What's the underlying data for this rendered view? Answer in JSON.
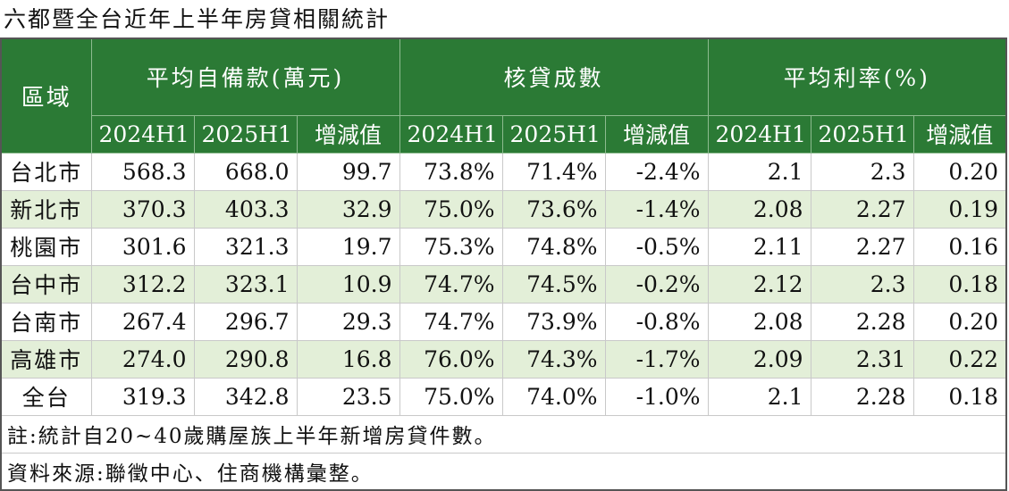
{
  "title": "六都暨全台近年上半年房貸相關統計",
  "colors": {
    "header_bg": "#2b7a35",
    "header_text": "#ffffff",
    "stripe": "#e3efd8"
  },
  "headers": {
    "region": "區域",
    "groups": [
      "平均自備款(萬元)",
      "核貸成數",
      "平均利率(%)"
    ],
    "sub": [
      "2024H1",
      "2025H1",
      "增減值",
      "2024H1",
      "2025H1",
      "增減值",
      "2024H1",
      "2025H1",
      "增減值"
    ]
  },
  "rows": [
    {
      "region": "台北市",
      "cells": [
        "568.3",
        "668.0",
        "99.7",
        "73.8%",
        "71.4%",
        "-2.4%",
        "2.1",
        "2.3",
        "0.20"
      ]
    },
    {
      "region": "新北市",
      "cells": [
        "370.3",
        "403.3",
        "32.9",
        "75.0%",
        "73.6%",
        "-1.4%",
        "2.08",
        "2.27",
        "0.19"
      ]
    },
    {
      "region": "桃園市",
      "cells": [
        "301.6",
        "321.3",
        "19.7",
        "75.3%",
        "74.8%",
        "-0.5%",
        "2.11",
        "2.27",
        "0.16"
      ]
    },
    {
      "region": "台中市",
      "cells": [
        "312.2",
        "323.1",
        "10.9",
        "74.7%",
        "74.5%",
        "-0.2%",
        "2.12",
        "2.3",
        "0.18"
      ]
    },
    {
      "region": "台南市",
      "cells": [
        "267.4",
        "296.7",
        "29.3",
        "74.7%",
        "73.9%",
        "-0.8%",
        "2.08",
        "2.28",
        "0.20"
      ]
    },
    {
      "region": "高雄市",
      "cells": [
        "274.0",
        "290.8",
        "16.8",
        "76.0%",
        "74.3%",
        "-1.7%",
        "2.09",
        "2.31",
        "0.22"
      ]
    },
    {
      "region": "全台",
      "cells": [
        "319.3",
        "342.8",
        "23.5",
        "75.0%",
        "74.0%",
        "-1.0%",
        "2.1",
        "2.28",
        "0.18"
      ]
    }
  ],
  "notes": {
    "note": "註:統計自20~40歲購屋族上半年新增房貸件數。",
    "source": "資料來源:聯徵中心、住商機構彙整。"
  },
  "chart_data": {
    "type": "table",
    "title": "六都暨全台近年上半年房貸相關統計",
    "columns": [
      "區域",
      "平均自備款(萬元) 2024H1",
      "平均自備款(萬元) 2025H1",
      "平均自備款(萬元) 增減值",
      "核貸成數 2024H1",
      "核貸成數 2025H1",
      "核貸成數 增減值",
      "平均利率(%) 2024H1",
      "平均利率(%) 2025H1",
      "平均利率(%) 增減值"
    ],
    "categories": [
      "台北市",
      "新北市",
      "桃園市",
      "台中市",
      "台南市",
      "高雄市",
      "全台"
    ],
    "series": [
      {
        "name": "平均自備款(萬元) 2024H1",
        "values": [
          568.3,
          370.3,
          301.6,
          312.2,
          267.4,
          274.0,
          319.3
        ]
      },
      {
        "name": "平均自備款(萬元) 2025H1",
        "values": [
          668.0,
          403.3,
          321.3,
          323.1,
          296.7,
          290.8,
          342.8
        ]
      },
      {
        "name": "平均自備款(萬元) 增減值",
        "values": [
          99.7,
          32.9,
          19.7,
          10.9,
          29.3,
          16.8,
          23.5
        ]
      },
      {
        "name": "核貸成數 2024H1",
        "values": [
          73.8,
          75.0,
          75.3,
          74.7,
          74.7,
          76.0,
          75.0
        ]
      },
      {
        "name": "核貸成數 2025H1",
        "values": [
          71.4,
          73.6,
          74.8,
          74.5,
          73.9,
          74.3,
          74.0
        ]
      },
      {
        "name": "核貸成數 增減值",
        "values": [
          -2.4,
          -1.4,
          -0.5,
          -0.2,
          -0.8,
          -1.7,
          -1.0
        ]
      },
      {
        "name": "平均利率(%) 2024H1",
        "values": [
          2.1,
          2.08,
          2.11,
          2.12,
          2.08,
          2.09,
          2.1
        ]
      },
      {
        "name": "平均利率(%) 2025H1",
        "values": [
          2.3,
          2.27,
          2.27,
          2.3,
          2.28,
          2.31,
          2.28
        ]
      },
      {
        "name": "平均利率(%) 增減值",
        "values": [
          0.2,
          0.19,
          0.16,
          0.18,
          0.2,
          0.22,
          0.18
        ]
      }
    ]
  }
}
